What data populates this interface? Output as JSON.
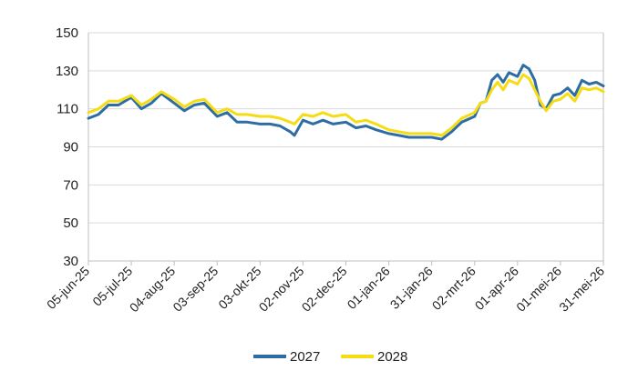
{
  "chart_data": {
    "type": "line",
    "title": "",
    "xlabel": "",
    "ylabel": "",
    "ylim": [
      30,
      150
    ],
    "yticks": [
      30,
      50,
      70,
      90,
      110,
      130,
      150
    ],
    "x_start": "05-jun-25",
    "x_end": "31-mei-26",
    "xtick_labels": [
      "05-jun-25",
      "05-jul-25",
      "04-aug-25",
      "03-sep-25",
      "03-okt-25",
      "02-nov-25",
      "02-dec-25",
      "01-jan-26",
      "31-jan-26",
      "02-mrt-26",
      "01-apr-26",
      "01-mei-26",
      "31-mei-26"
    ],
    "grid": "horizontal",
    "legend_position": "bottom",
    "x": [
      "05-jun-25",
      "12-jun-25",
      "19-jun-25",
      "26-jun-25",
      "05-jul-25",
      "12-jul-25",
      "19-jul-25",
      "26-jul-25",
      "04-aug-25",
      "11-aug-25",
      "18-aug-25",
      "25-aug-25",
      "03-sep-25",
      "10-sep-25",
      "17-sep-25",
      "24-sep-25",
      "03-okt-25",
      "10-okt-25",
      "17-okt-25",
      "24-okt-25",
      "27-okt-25",
      "02-nov-25",
      "09-nov-25",
      "16-nov-25",
      "23-nov-25",
      "02-dec-25",
      "09-dec-25",
      "16-dec-25",
      "23-dec-25",
      "01-jan-26",
      "08-jan-26",
      "15-jan-26",
      "22-jan-26",
      "31-jan-26",
      "07-feb-26",
      "14-feb-26",
      "21-feb-26",
      "02-mrt-26",
      "06-mrt-26",
      "10-mrt-26",
      "14-mrt-26",
      "18-mrt-26",
      "22-mrt-26",
      "26-mrt-26",
      "01-apr-26",
      "05-apr-26",
      "09-apr-26",
      "13-apr-26",
      "17-apr-26",
      "21-apr-26",
      "26-apr-26",
      "01-mei-26",
      "06-mei-26",
      "11-mei-26",
      "16-mei-26",
      "21-mei-26",
      "26-mei-26",
      "31-mei-26"
    ],
    "series": [
      {
        "name": "2027",
        "color": "#2e6da4",
        "values": [
          105,
          107,
          112,
          112,
          116,
          110,
          113,
          118,
          113,
          109,
          112,
          113,
          106,
          108,
          103,
          103,
          102,
          102,
          101,
          98,
          96,
          104,
          102,
          104,
          102,
          103,
          100,
          101,
          99,
          97,
          96,
          95,
          95,
          95,
          94,
          98,
          103,
          106,
          113,
          114,
          125,
          128,
          124,
          129,
          127,
          133,
          131,
          125,
          112,
          110,
          117,
          118,
          121,
          117,
          125,
          123,
          124,
          122
        ]
      },
      {
        "name": "2028",
        "color": "#f5dc14",
        "values": [
          108,
          110,
          114,
          114,
          117,
          112,
          115,
          119,
          115,
          111,
          114,
          115,
          108,
          110,
          107,
          107,
          106,
          106,
          105,
          103,
          102,
          107,
          106,
          108,
          106,
          107,
          103,
          104,
          102,
          99,
          98,
          97,
          97,
          97,
          96,
          100,
          105,
          108,
          113,
          114,
          120,
          124,
          120,
          125,
          123,
          128,
          126,
          120,
          114,
          109,
          114,
          115,
          118,
          114,
          121,
          120,
          121,
          119
        ]
      }
    ]
  }
}
